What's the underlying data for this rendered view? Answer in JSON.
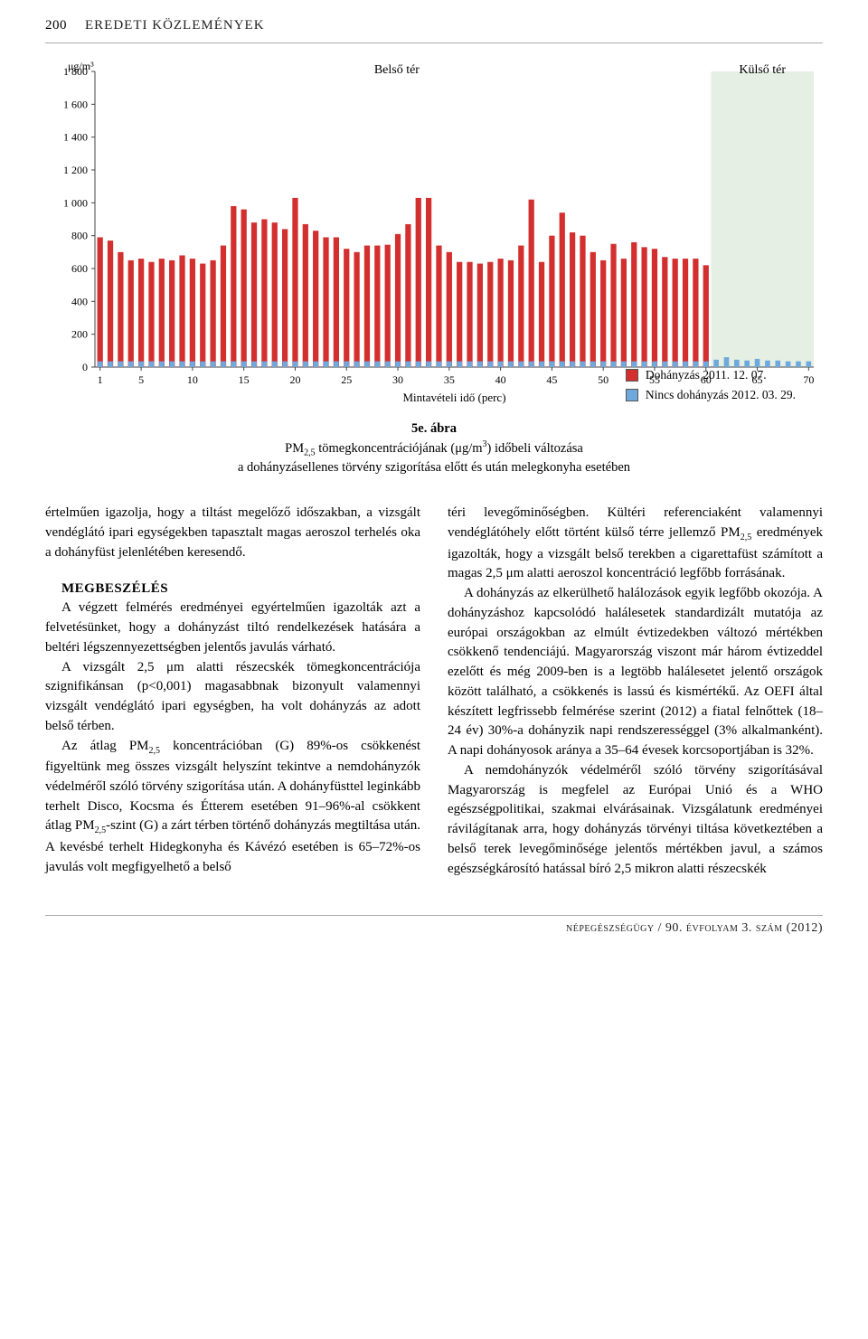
{
  "header": {
    "page_number": "200",
    "section": "EREDETI KÖZLEMÉNYEK"
  },
  "chart": {
    "type": "bar",
    "y_unit": "μg/m³",
    "ylim": [
      0,
      1800
    ],
    "ytick_step": 200,
    "yticks": [
      "0",
      "200",
      "400",
      "600",
      "800",
      "1 000",
      "1 200",
      "1 400",
      "1 600",
      "1 800"
    ],
    "x_label": "Mintavételi idő (perc)",
    "xticks": [
      1,
      5,
      10,
      15,
      20,
      25,
      30,
      35,
      40,
      45,
      50,
      55,
      60,
      65,
      70
    ],
    "region_labels": {
      "inner": "Belső tér",
      "outer": "Külső tér"
    },
    "outer_region_start_index": 60,
    "series": {
      "smoking": {
        "label": "Dohányzás 2011. 12. 07.",
        "color": "#d32f2f"
      },
      "nosmoking": {
        "label": "Nincs dohányzás 2012. 03. 29.",
        "color": "#6fa8dc"
      }
    },
    "colors": {
      "axis": "#444444",
      "bg": "#ffffff",
      "outer_bg": "#e5efe3"
    },
    "smoking_values": [
      790,
      770,
      700,
      650,
      660,
      640,
      660,
      650,
      680,
      660,
      630,
      650,
      740,
      980,
      960,
      880,
      900,
      880,
      840,
      1030,
      870,
      830,
      790,
      790,
      720,
      700,
      740,
      740,
      745,
      810,
      870,
      1030,
      1030,
      740,
      700,
      640,
      640,
      630,
      640,
      660,
      650,
      740,
      1020,
      640,
      800,
      940,
      820,
      800,
      700,
      650,
      750,
      660,
      760,
      730,
      720,
      670,
      660,
      660,
      660,
      620,
      0,
      0,
      0,
      0,
      0,
      0,
      0,
      0,
      0,
      0
    ],
    "nosmoking_values": [
      35,
      35,
      35,
      35,
      35,
      35,
      35,
      35,
      35,
      35,
      35,
      35,
      35,
      35,
      35,
      35,
      35,
      35,
      35,
      35,
      35,
      35,
      35,
      35,
      35,
      35,
      35,
      35,
      35,
      35,
      35,
      35,
      35,
      35,
      35,
      35,
      35,
      35,
      35,
      35,
      35,
      35,
      35,
      35,
      35,
      35,
      35,
      35,
      35,
      35,
      35,
      35,
      35,
      35,
      35,
      35,
      35,
      35,
      35,
      35,
      45,
      60,
      45,
      40,
      50,
      40,
      40,
      35,
      35,
      35
    ],
    "caption_title": "5e. ábra",
    "caption_line1_a": "PM",
    "caption_line1_sub": "2,5",
    "caption_line1_b": " tömegkoncentrációjának (μg/m",
    "caption_line1_sup": "3",
    "caption_line1_c": ") időbeli változása",
    "caption_line2": "a dohányzásellenes törvény szigorítása előtt és után melegkonyha esetében"
  },
  "body": {
    "left": {
      "p1": "értelműen igazolja, hogy a tiltást megelőző időszakban, a vizsgált vendéglátó ipari egységekben tapasztalt magas aeroszol terhelés oka a dohányfüst jelenlétében keresendő.",
      "heading": "MEGBESZÉLÉS",
      "p2": "A végzett felmérés eredményei egyértelműen igazolták azt a felvetésünket, hogy a dohányzást tiltó rendelkezések hatására a beltéri légszennyezettségben jelentős javulás várható.",
      "p3": "A vizsgált 2,5 μm alatti részecskék tömegkoncentrációja szignifikánsan (p<0,001) magasabbnak bizonyult valamennyi vizsgált vendéglátó ipari egységben, ha volt dohányzás az adott belső térben.",
      "p4_a": "Az átlag PM",
      "p4_b": " koncentrációban (G) 89%-os csökkenést figyeltünk meg összes vizsgált helyszínt tekintve a nemdohányzók védelméről szóló törvény szigorítása után. A dohányfüsttel leginkább terhelt Disco, Kocsma és Étterem esetében 91–96%-al csökkent átlag PM",
      "p4_c": "-szint (G) a zárt térben történő dohányzás megtiltása után. A kevésbé terhelt Hidegkonyha és Kávézó esetében is 65–72%-os javulás volt megfigyelhető a belső"
    },
    "right": {
      "p1_a": "téri levegőminőségben. Kültéri referenciaként valamennyi vendéglátóhely előtt történt külső térre jellemző PM",
      "p1_b": " eredmények igazolták, hogy a vizsgált belső terekben a cigarettafüst számított a magas 2,5 μm alatti aeroszol koncentráció legfőbb forrásának.",
      "p2": "A dohányzás az elkerülhető halálozások egyik legfőbb okozója. A dohányzáshoz kapcsolódó halálesetek standardizált mutatója az európai országokban az elmúlt évtizedekben változó mértékben csökkenő tendenciájú. Magyarország viszont már három évtizeddel ezelőtt és még 2009-ben is a legtöbb halálesetet jelentő országok között található, a csökkenés is lassú és kismértékű. Az OEFI által készített legfrissebb felmérése szerint (2012) a fiatal felnőttek (18–24 év) 30%-a dohányzik napi rendszerességgel (3% alkalmanként). A napi dohányosok aránya a 35–64 évesek korcsoportjában is 32%.",
      "p3": "A nemdohányzók védelméről szóló törvény szigorításával Magyarország is megfelel az Európai Unió és a WHO egészségpolitikai, szakmai elvárásainak. Vizsgálatunk eredményei rávilágítanak arra, hogy dohányzás törvényi tiltása következtében a belső terek levegőminősége jelentős mértékben javul, a számos egészségkárosító hatással bíró 2,5 mikron alatti részecskék"
    }
  },
  "footer": {
    "text": "népegészségügy / 90. évfolyam 3. szám (2012)"
  }
}
